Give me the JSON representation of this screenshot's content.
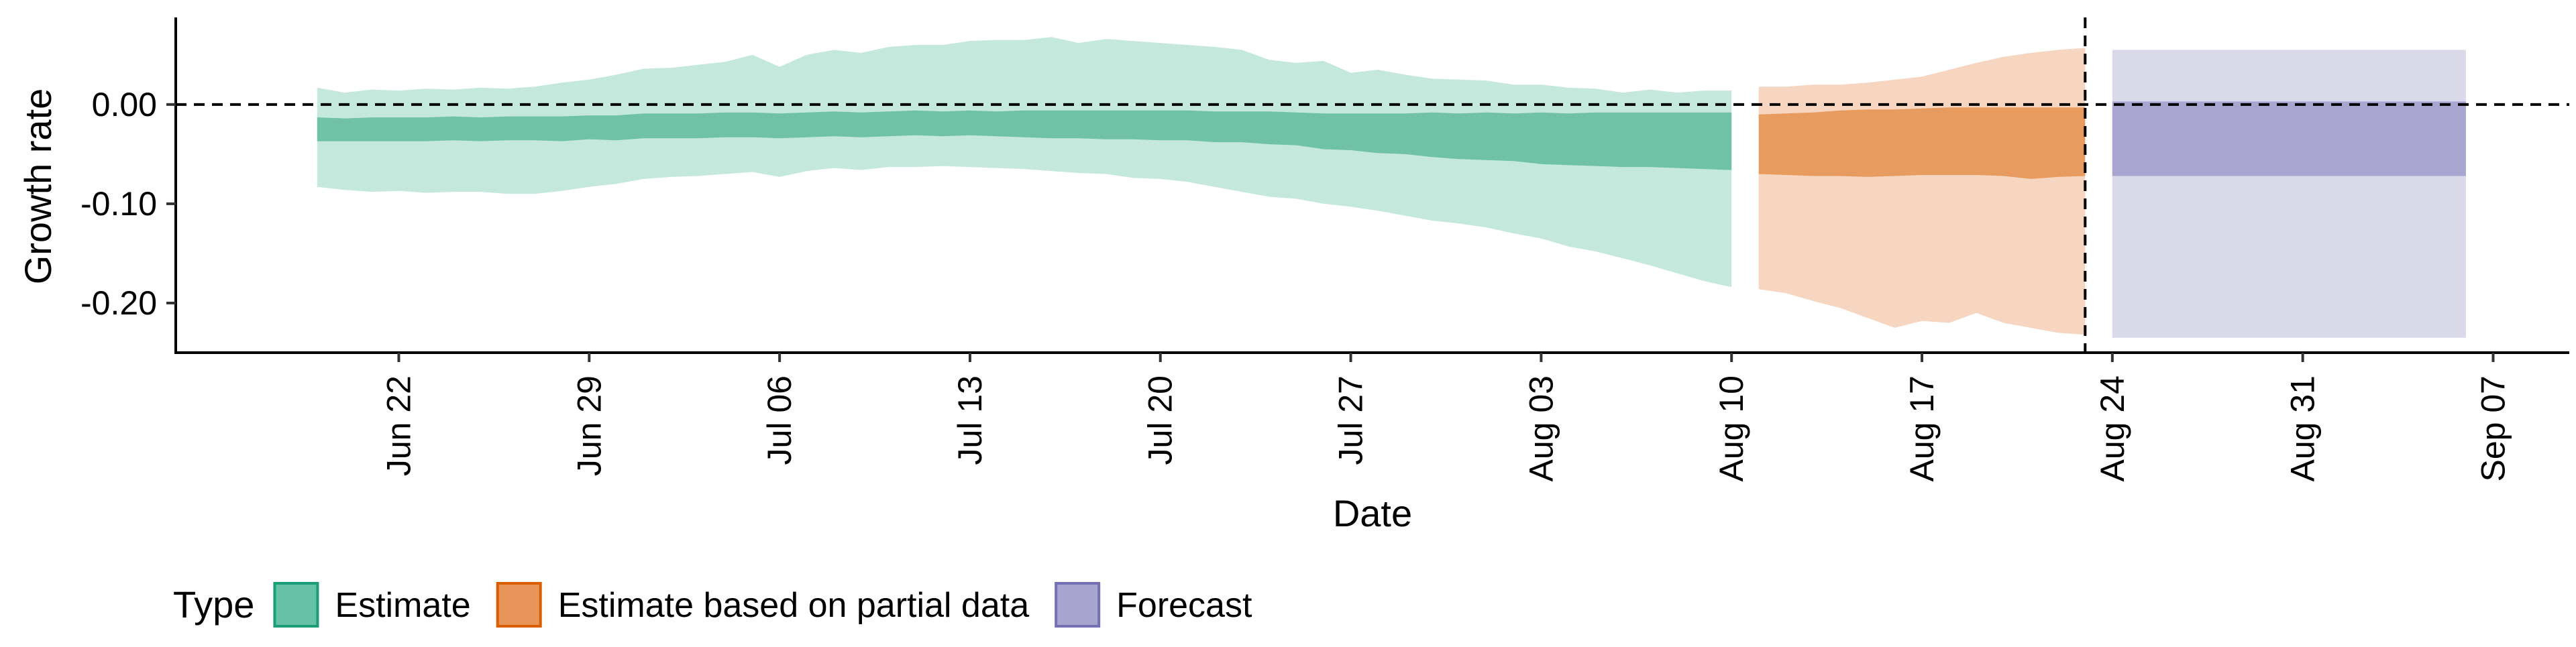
{
  "chart_data": {
    "type": "area",
    "xlabel": "Date",
    "ylabel": "Growth rate",
    "x_ticks": [
      "Jun 22",
      "Jun 29",
      "Jul 06",
      "Jul 13",
      "Jul 20",
      "Jul 27",
      "Aug 03",
      "Aug 10",
      "Aug 17",
      "Aug 24",
      "Aug 31",
      "Sep 07"
    ],
    "x_tick_days": [
      173,
      180,
      187,
      194,
      201,
      208,
      215,
      222,
      229,
      236,
      243,
      250
    ],
    "xlim": [
      164.8,
      252.8
    ],
    "y_ticks": [
      "0.00",
      "-0.10",
      "-0.20"
    ],
    "y_tick_values": [
      0.0,
      -0.1,
      -0.2
    ],
    "ylim": [
      -0.25,
      0.085
    ],
    "reference_lines": {
      "horizontal_y": 0.0,
      "vertical_date": "Aug 23"
    },
    "legend": {
      "title": "Type",
      "position": "bottom",
      "entries": [
        {
          "label": "Estimate",
          "fill": "#66c2a5",
          "border": "#1b9e77"
        },
        {
          "label": "Estimate based on partial data",
          "fill": "#e8955a",
          "border": "#d95f02"
        },
        {
          "label": "Forecast",
          "fill": "#a7a4d0",
          "border": "#7570b3"
        }
      ]
    },
    "colors": {
      "Estimate": {
        "outer": "#c5e8dd",
        "inner": "#70c2a6"
      },
      "Estimate based on partial data": {
        "outer": "#f6d6c0",
        "inner": "#e89b5f"
      },
      "Forecast": {
        "outer": "#dad9ea",
        "inner": "#a8a5d0"
      }
    },
    "series": [
      {
        "name": "Estimate",
        "days": [
          170,
          171,
          172,
          173,
          174,
          175,
          176,
          177,
          178,
          179,
          180,
          181,
          182,
          183,
          184,
          185,
          186,
          187,
          188,
          189,
          190,
          191,
          192,
          193,
          194,
          195,
          196,
          197,
          198,
          199,
          200,
          201,
          202,
          203,
          204,
          205,
          206,
          207,
          208,
          209,
          210,
          211,
          212,
          213,
          214,
          215,
          216,
          217,
          218,
          219,
          220,
          221,
          222
        ],
        "outer_upper": [
          0.017,
          0.012,
          0.015,
          0.014,
          0.016,
          0.015,
          0.017,
          0.016,
          0.018,
          0.022,
          0.025,
          0.03,
          0.036,
          0.037,
          0.04,
          0.043,
          0.05,
          0.038,
          0.05,
          0.055,
          0.052,
          0.058,
          0.06,
          0.06,
          0.064,
          0.065,
          0.065,
          0.068,
          0.062,
          0.066,
          0.064,
          0.062,
          0.06,
          0.058,
          0.055,
          0.045,
          0.042,
          0.044,
          0.032,
          0.035,
          0.03,
          0.026,
          0.025,
          0.024,
          0.02,
          0.02,
          0.017,
          0.016,
          0.012,
          0.015,
          0.012,
          0.014,
          0.014
        ],
        "inner_upper": [
          -0.013,
          -0.014,
          -0.013,
          -0.013,
          -0.013,
          -0.012,
          -0.013,
          -0.012,
          -0.012,
          -0.012,
          -0.011,
          -0.011,
          -0.009,
          -0.009,
          -0.009,
          -0.008,
          -0.008,
          -0.009,
          -0.008,
          -0.007,
          -0.008,
          -0.007,
          -0.006,
          -0.007,
          -0.006,
          -0.007,
          -0.006,
          -0.006,
          -0.006,
          -0.006,
          -0.006,
          -0.006,
          -0.006,
          -0.007,
          -0.007,
          -0.007,
          -0.008,
          -0.009,
          -0.009,
          -0.009,
          -0.009,
          -0.008,
          -0.009,
          -0.008,
          -0.009,
          -0.008,
          -0.009,
          -0.008,
          -0.008,
          -0.008,
          -0.008,
          -0.008,
          -0.008
        ],
        "inner_lower": [
          -0.037,
          -0.037,
          -0.037,
          -0.037,
          -0.037,
          -0.036,
          -0.037,
          -0.036,
          -0.036,
          -0.037,
          -0.035,
          -0.036,
          -0.034,
          -0.034,
          -0.034,
          -0.033,
          -0.033,
          -0.034,
          -0.033,
          -0.032,
          -0.033,
          -0.032,
          -0.031,
          -0.032,
          -0.031,
          -0.032,
          -0.033,
          -0.034,
          -0.034,
          -0.035,
          -0.035,
          -0.036,
          -0.036,
          -0.038,
          -0.038,
          -0.04,
          -0.041,
          -0.045,
          -0.046,
          -0.049,
          -0.05,
          -0.053,
          -0.055,
          -0.056,
          -0.057,
          -0.06,
          -0.061,
          -0.062,
          -0.063,
          -0.063,
          -0.064,
          -0.065,
          -0.066
        ],
        "outer_lower": [
          -0.083,
          -0.086,
          -0.088,
          -0.087,
          -0.089,
          -0.088,
          -0.088,
          -0.09,
          -0.09,
          -0.087,
          -0.083,
          -0.08,
          -0.075,
          -0.073,
          -0.072,
          -0.07,
          -0.068,
          -0.073,
          -0.067,
          -0.064,
          -0.066,
          -0.063,
          -0.063,
          -0.062,
          -0.063,
          -0.064,
          -0.065,
          -0.067,
          -0.069,
          -0.07,
          -0.074,
          -0.075,
          -0.078,
          -0.083,
          -0.088,
          -0.093,
          -0.095,
          -0.1,
          -0.103,
          -0.107,
          -0.112,
          -0.117,
          -0.12,
          -0.124,
          -0.13,
          -0.135,
          -0.143,
          -0.148,
          -0.155,
          -0.162,
          -0.17,
          -0.178,
          -0.184
        ]
      },
      {
        "name": "Estimate based on partial data",
        "days": [
          223,
          224,
          225,
          226,
          227,
          228,
          229,
          230,
          231,
          232,
          233,
          234,
          235
        ],
        "outer_upper": [
          0.018,
          0.018,
          0.02,
          0.02,
          0.022,
          0.025,
          0.028,
          0.035,
          0.042,
          0.048,
          0.052,
          0.055,
          0.057
        ],
        "inner_upper": [
          -0.01,
          -0.009,
          -0.008,
          -0.006,
          -0.005,
          -0.005,
          -0.004,
          -0.003,
          -0.003,
          -0.003,
          -0.003,
          -0.003,
          -0.003
        ],
        "inner_lower": [
          -0.07,
          -0.071,
          -0.072,
          -0.072,
          -0.073,
          -0.072,
          -0.071,
          -0.071,
          -0.071,
          -0.072,
          -0.075,
          -0.073,
          -0.072
        ],
        "outer_lower": [
          -0.186,
          -0.19,
          -0.198,
          -0.205,
          -0.215,
          -0.225,
          -0.218,
          -0.22,
          -0.21,
          -0.22,
          -0.225,
          -0.23,
          -0.232
        ]
      },
      {
        "name": "Forecast",
        "days": [
          236,
          249
        ],
        "outer_upper": [
          0.055,
          0.055
        ],
        "inner_upper": [
          0.003,
          0.003
        ],
        "inner_lower": [
          -0.072,
          -0.072
        ],
        "outer_lower": [
          -0.235,
          -0.235
        ]
      }
    ]
  }
}
